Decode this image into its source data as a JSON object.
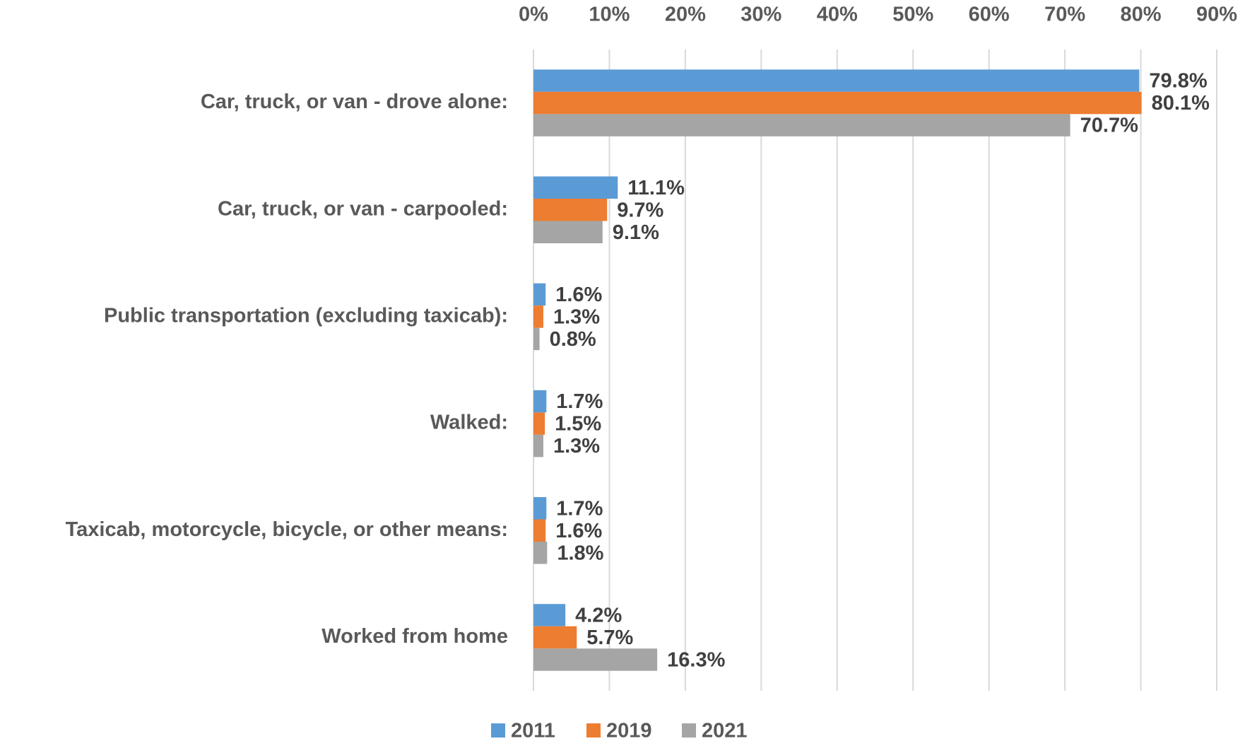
{
  "chart_data": {
    "type": "bar",
    "orientation": "horizontal",
    "categories": [
      "Car, truck, or van - drove alone:",
      "Car, truck, or van - carpooled:",
      "Public transportation (excluding taxicab):",
      "Walked:",
      "Taxicab, motorcycle, bicycle, or other means:",
      "Worked from home"
    ],
    "series": [
      {
        "name": "2011",
        "color": "#5b9bd5",
        "values": [
          79.8,
          11.1,
          1.6,
          1.7,
          1.7,
          4.2
        ],
        "value_labels": [
          "79.8%",
          "11.1%",
          "1.6%",
          "1.7%",
          "1.7%",
          "4.2%"
        ]
      },
      {
        "name": "2019",
        "color": "#ed7d31",
        "values": [
          80.1,
          9.7,
          1.3,
          1.5,
          1.6,
          5.7
        ],
        "value_labels": [
          "80.1%",
          "9.7%",
          "1.3%",
          "1.5%",
          "1.6%",
          "5.7%"
        ]
      },
      {
        "name": "2021",
        "color": "#a5a5a5",
        "values": [
          70.7,
          9.1,
          0.8,
          1.3,
          1.8,
          16.3
        ],
        "value_labels": [
          "70.7%",
          "9.1%",
          "0.8%",
          "1.3%",
          "1.8%",
          "16.3%"
        ]
      }
    ],
    "xlim": [
      0,
      90
    ],
    "xticks": [
      {
        "value": 0,
        "label": "0%"
      },
      {
        "value": 10,
        "label": "10%"
      },
      {
        "value": 20,
        "label": "20%"
      },
      {
        "value": 30,
        "label": "30%"
      },
      {
        "value": 40,
        "label": "40%"
      },
      {
        "value": 50,
        "label": "50%"
      },
      {
        "value": 60,
        "label": "60%"
      },
      {
        "value": 70,
        "label": "70%"
      },
      {
        "value": 80,
        "label": "80%"
      },
      {
        "value": 90,
        "label": "90%"
      }
    ],
    "grid": true,
    "legend": "bottom"
  }
}
